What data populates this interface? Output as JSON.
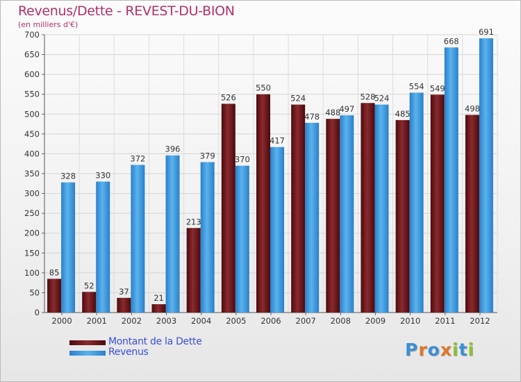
{
  "title": "Revenus/Dette - REVEST-DU-BION",
  "subtitle": "(en milliers d'€)",
  "colors": {
    "title": "#b0306a",
    "debt": "#6e1418",
    "revenue": "#3a9be0",
    "legend_text": "#3a4ed6"
  },
  "logo": {
    "text": "Proxiti",
    "letters": [
      "P",
      "r",
      "o",
      "x",
      "i",
      "t",
      "i"
    ],
    "letter_colors": [
      "#3b8fd6",
      "#e0762b",
      "#3b8fd6",
      "#e0762b",
      "#8cbf2d",
      "#3b8fd6",
      "#8cbf2d"
    ]
  },
  "legend": [
    {
      "label": "Montant de la Dette",
      "color": "#6e1418"
    },
    {
      "label": "Revenus",
      "color": "#3a9be0"
    }
  ],
  "chart_data": {
    "type": "bar",
    "title": "Revenus/Dette - REVEST-DU-BION",
    "subtitle": "(en milliers d'€)",
    "categories": [
      "2000",
      "2001",
      "2002",
      "2003",
      "2004",
      "2005",
      "2006",
      "2007",
      "2008",
      "2009",
      "2010",
      "2011",
      "2012"
    ],
    "series": [
      {
        "name": "Montant de la Dette",
        "values": [
          85,
          52,
          37,
          21,
          213,
          526,
          550,
          524,
          488,
          528,
          485,
          549,
          498
        ]
      },
      {
        "name": "Revenus",
        "values": [
          328,
          330,
          372,
          396,
          379,
          370,
          417,
          478,
          497,
          524,
          554,
          668,
          691
        ]
      }
    ],
    "ylim": [
      0,
      700
    ],
    "yticks": [
      0,
      50,
      100,
      150,
      200,
      250,
      300,
      350,
      400,
      450,
      500,
      550,
      600,
      650,
      700
    ],
    "grid": true,
    "legend_position": "bottom-left"
  }
}
